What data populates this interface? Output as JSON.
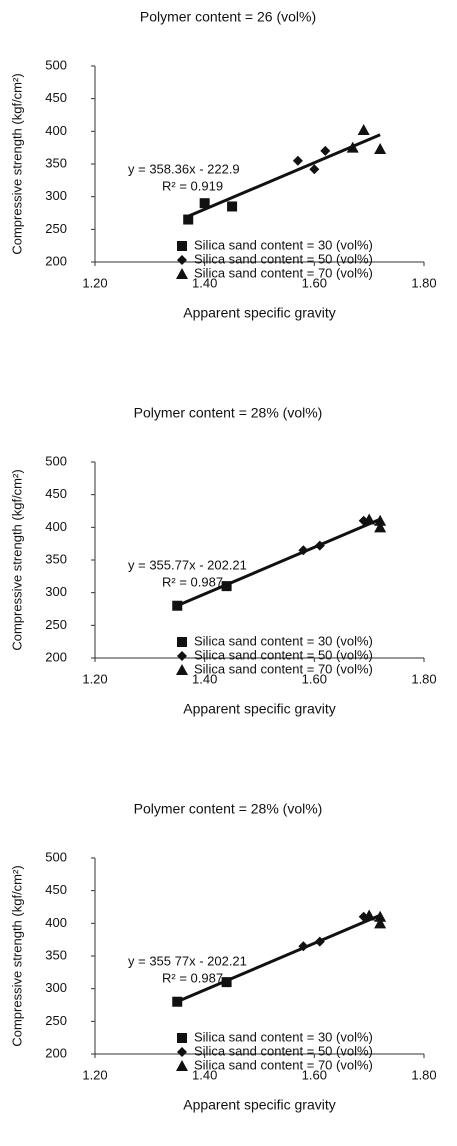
{
  "chart_data": [
    {
      "type": "scatter",
      "title": "Polymer content = 26 (vol%)",
      "xlabel": "Apparent specific gravity",
      "ylabel": "Compressive strength (kgf/cm²)",
      "xlim": [
        1.2,
        1.8
      ],
      "xticks": [
        {
          "value": 1.2,
          "label": "1.20"
        },
        {
          "value": 1.4,
          "label": "1.40"
        },
        {
          "value": 1.6,
          "label": "1.60"
        },
        {
          "value": 1.8,
          "label": "1.80"
        }
      ],
      "ylim": [
        200,
        500
      ],
      "yticks": [
        200,
        250,
        300,
        350,
        400,
        450,
        500
      ],
      "annotations": [
        "y = 358.36x - 222.9",
        "R² = 0.919"
      ],
      "trendline": true,
      "series": [
        {
          "name": "Silica sand content = 30 (vol%)",
          "marker": "square",
          "color": "#111111",
          "x": [
            1.37,
            1.4,
            1.45
          ],
          "values": [
            265,
            290,
            285
          ]
        },
        {
          "name": "Silica sand content = 50 (vol%)",
          "marker": "diamond",
          "color": "#111111",
          "x": [
            1.57,
            1.6,
            1.62
          ],
          "values": [
            355,
            342,
            370
          ]
        },
        {
          "name": "Silica sand content = 70 (vol%)",
          "marker": "triangle",
          "color": "#111111",
          "x": [
            1.67,
            1.69,
            1.72
          ],
          "values": [
            375,
            402,
            373
          ]
        }
      ]
    },
    {
      "type": "scatter",
      "title": "Polymer content = 28% (vol%)",
      "xlabel": "Apparent specific gravity",
      "ylabel": "Compressive strength (kgf/cm²)",
      "xlim": [
        1.2,
        1.8
      ],
      "xticks": [
        {
          "value": 1.2,
          "label": "1.20"
        },
        {
          "value": 1.4,
          "label": "1.40"
        },
        {
          "value": 1.6,
          "label": "1.60"
        },
        {
          "value": 1.8,
          "label": "1.80"
        }
      ],
      "ylim": [
        200,
        500
      ],
      "yticks": [
        200,
        250,
        300,
        350,
        400,
        450,
        500
      ],
      "annotations": [
        "y = 355.77x - 202.21",
        "R² = 0.987"
      ],
      "trendline": true,
      "series": [
        {
          "name": "Silica sand content = 30 (vol%)",
          "marker": "square",
          "color": "#111111",
          "x": [
            1.35,
            1.44
          ],
          "values": [
            280,
            310
          ]
        },
        {
          "name": "Silica sand content = 50 (vol%)",
          "marker": "diamond",
          "color": "#111111",
          "x": [
            1.58,
            1.61,
            1.69
          ],
          "values": [
            365,
            372,
            410
          ]
        },
        {
          "name": "Silica sand content = 70 (vol%)",
          "marker": "triangle",
          "color": "#111111",
          "x": [
            1.7,
            1.72,
            1.72
          ],
          "values": [
            412,
            410,
            400
          ]
        }
      ]
    },
    {
      "type": "scatter",
      "title": "Polymer content = 28% (vol%)",
      "xlabel": "Apparent specific gravity",
      "ylabel": "Compressive strength (kgf/cm²)",
      "xlim": [
        1.2,
        1.8
      ],
      "xticks": [
        {
          "value": 1.2,
          "label": "1.20"
        },
        {
          "value": 1.4,
          "label": "1.40"
        },
        {
          "value": 1.6,
          "label": "1.60"
        },
        {
          "value": 1.8,
          "label": "1.80"
        }
      ],
      "ylim": [
        200,
        500
      ],
      "yticks": [
        200,
        250,
        300,
        350,
        400,
        450,
        500
      ],
      "annotations": [
        "y = 355 77x - 202.21",
        "R² = 0.987"
      ],
      "trendline": true,
      "series": [
        {
          "name": "Silica sand content = 30 (vol%)",
          "marker": "square",
          "color": "#111111",
          "x": [
            1.35,
            1.44
          ],
          "values": [
            280,
            310
          ]
        },
        {
          "name": "Silica sand content = 50 (vol%)",
          "marker": "diamond",
          "color": "#111111",
          "x": [
            1.58,
            1.61,
            1.69
          ],
          "values": [
            365,
            372,
            410
          ]
        },
        {
          "name": "Silica sand content = 70 (vol%)",
          "marker": "triangle",
          "color": "#111111",
          "x": [
            1.7,
            1.72,
            1.72
          ],
          "values": [
            412,
            410,
            400
          ]
        }
      ]
    }
  ]
}
